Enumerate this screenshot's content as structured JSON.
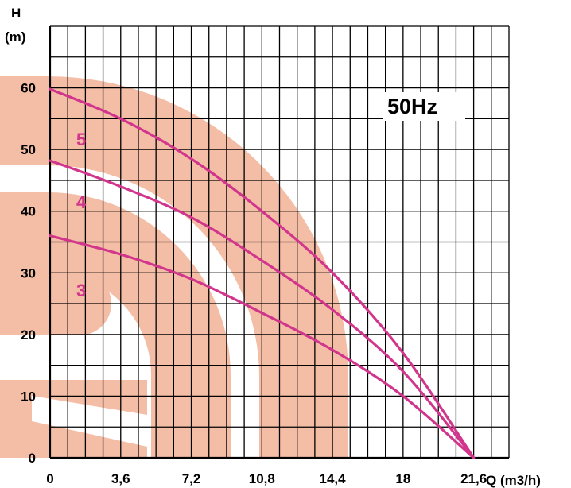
{
  "chart_data": {
    "type": "line",
    "ylabel_line1": "H",
    "ylabel_line2": "(m)",
    "xlabel": "Q (m3/h)",
    "frequency_label": "50Hz",
    "xlim": [
      0,
      23.4
    ],
    "ylim": [
      0,
      70
    ],
    "x_ticks": [
      0,
      3.6,
      7.2,
      10.8,
      14.4,
      18,
      21.6
    ],
    "x_tick_labels": [
      "0",
      "3,6",
      "7,2",
      "10,8",
      "14,4",
      "18",
      "21,6"
    ],
    "y_ticks": [
      0,
      10,
      20,
      30,
      40,
      50,
      60
    ],
    "y_tick_labels": [
      "0",
      "10",
      "20",
      "30",
      "40",
      "50",
      "60"
    ],
    "grid": true,
    "curve_color": "#d1368c",
    "watermark_color": "#f4bda6",
    "series": [
      {
        "name": "5",
        "x": [
          0,
          3.6,
          7.2,
          10.8,
          14.4,
          18,
          21.6
        ],
        "y": [
          59.8,
          55,
          48.5,
          40,
          30,
          17,
          0
        ]
      },
      {
        "name": "4",
        "x": [
          0,
          3.6,
          7.2,
          10.8,
          14.4,
          18,
          21.6
        ],
        "y": [
          48.2,
          44,
          39,
          32,
          24,
          14,
          0
        ]
      },
      {
        "name": "3",
        "x": [
          0,
          3.6,
          7.2,
          10.8,
          14.4,
          18,
          21.6
        ],
        "y": [
          36,
          33,
          29,
          23.5,
          17.5,
          10,
          0
        ]
      }
    ]
  }
}
